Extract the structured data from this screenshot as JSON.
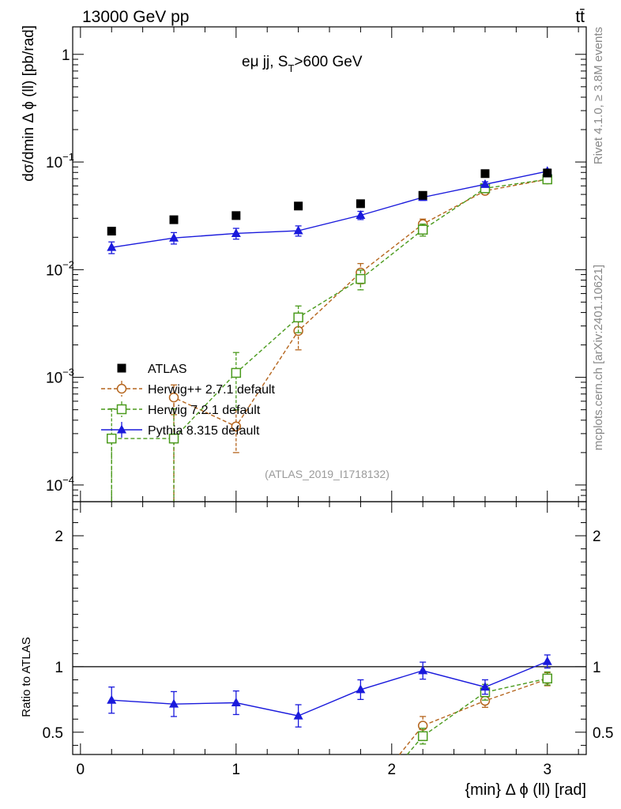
{
  "header": {
    "left_label": "13000 GeV pp",
    "right_label": "tt̄"
  },
  "side_labels": {
    "rivet": "Rivet 4.1.0, ≥ 3.8M events",
    "mcplots": "mcplots.cern.ch [arXiv:2401.10621]"
  },
  "chart_data": [
    {
      "type": "scatter",
      "panel": "main",
      "title_main": "eμ jj, S",
      "title_sub": "T",
      "title_rest": ">600 GeV",
      "ylabel": "dσ/dmin Δ ϕ (ll) [pb/rad]",
      "yscale": "log",
      "ylim": [
        7e-05,
        1.8
      ],
      "xlim": [
        -0.05,
        3.25
      ],
      "watermark": "(ATLAS_2019_I1718132)",
      "x": [
        0.2,
        0.6,
        1.0,
        1.4,
        1.8,
        2.2,
        2.6,
        3.0
      ],
      "series": [
        {
          "name": "ATLAS",
          "marker": "filled-square",
          "color": "#000000",
          "values": [
            0.0228,
            0.0291,
            0.0318,
            0.039,
            0.041,
            0.049,
            0.078,
            0.079
          ]
        },
        {
          "name": "Herwig++ 2.7.1 default",
          "marker": "open-circle",
          "color": "#b5651d",
          "values": [
            null,
            0.00065,
            0.00035,
            0.0027,
            0.0094,
            0.0265,
            0.054,
            0.069
          ],
          "err_low": [
            null,
            0.0002,
            0.00015,
            0.0009,
            0.002,
            0.003,
            0.004,
            0.005
          ],
          "err_high": [
            null,
            0.0002,
            0.00015,
            0.0009,
            0.002,
            0.003,
            0.004,
            0.005
          ]
        },
        {
          "name": "Herwig 7.2.1 default",
          "marker": "open-square",
          "color": "#4a9a1c",
          "values": [
            0.00027,
            0.00027,
            0.0011,
            0.0036,
            0.0082,
            0.0235,
            0.057,
            0.069
          ],
          "err_low": [
            0.00024,
            0.00024,
            0.0006,
            0.001,
            0.0017,
            0.003,
            0.004,
            0.005
          ],
          "err_high": [
            0.00024,
            0.00024,
            0.0006,
            0.001,
            0.0017,
            0.003,
            0.004,
            0.005
          ]
        },
        {
          "name": "Pythia 8.315 default",
          "marker": "filled-triangle",
          "color": "#1a1adc",
          "values": [
            0.0161,
            0.0197,
            0.0217,
            0.023,
            0.032,
            0.047,
            0.062,
            0.082
          ],
          "err_low": [
            0.002,
            0.0024,
            0.0025,
            0.0025,
            0.0028,
            0.003,
            0.0035,
            0.004
          ],
          "err_high": [
            0.002,
            0.0024,
            0.0025,
            0.0025,
            0.0028,
            0.003,
            0.0035,
            0.004
          ]
        }
      ],
      "y_ticks": [
        {
          "value": 0.0001,
          "base": "10",
          "exp": "−4"
        },
        {
          "value": 0.001,
          "base": "10",
          "exp": "−3"
        },
        {
          "value": 0.01,
          "base": "10",
          "exp": "−2"
        },
        {
          "value": 0.1,
          "base": "10",
          "exp": "−1"
        },
        {
          "value": 1,
          "base": "1",
          "exp": ""
        }
      ]
    },
    {
      "type": "line",
      "panel": "ratio",
      "ylabel": "Ratio to ATLAS",
      "xlabel": "{min} Δ ϕ (ll) [rad]",
      "yscale": "linear",
      "ylim": [
        0.33,
        2.26
      ],
      "xlim": [
        -0.05,
        3.25
      ],
      "reference_line": 1,
      "y_ticks": [
        0.5,
        1,
        2
      ],
      "y_tick_labels": [
        "0.5",
        "1",
        "2"
      ],
      "x_ticks": [
        0,
        1,
        2,
        3
      ],
      "x_tick_labels": [
        "0",
        "1",
        "2",
        "3"
      ],
      "x": [
        0.2,
        0.6,
        1.0,
        1.4,
        1.8,
        2.2,
        2.6,
        3.0
      ],
      "series": [
        {
          "name": "Herwig++ 2.7.1 default",
          "color": "#b5651d",
          "marker": "open-circle",
          "values": [
            null,
            null,
            null,
            null,
            null,
            0.55,
            0.74,
            0.905
          ],
          "err_low": [
            null,
            null,
            null,
            null,
            null,
            0.07,
            0.05,
            0.05
          ],
          "err_high": [
            null,
            null,
            null,
            null,
            null,
            0.07,
            0.05,
            0.05
          ],
          "from_below_x": 2.05
        },
        {
          "name": "Herwig 7.2.1 default",
          "color": "#4a9a1c",
          "marker": "open-square",
          "values": [
            null,
            null,
            null,
            null,
            null,
            0.47,
            0.805,
            0.91
          ],
          "err_low": [
            null,
            null,
            null,
            null,
            null,
            0.06,
            0.06,
            0.05
          ],
          "err_high": [
            null,
            null,
            null,
            null,
            null,
            0.06,
            0.06,
            0.05
          ],
          "from_below_x": 2.1
        },
        {
          "name": "Pythia 8.315 default",
          "color": "#1a1adc",
          "marker": "filled-triangle",
          "values": [
            0.745,
            0.715,
            0.725,
            0.625,
            0.825,
            0.97,
            0.845,
            1.04
          ],
          "err_low": [
            0.1,
            0.095,
            0.09,
            0.085,
            0.075,
            0.065,
            0.055,
            0.05
          ],
          "err_high": [
            0.1,
            0.095,
            0.09,
            0.085,
            0.075,
            0.065,
            0.055,
            0.05
          ]
        }
      ]
    }
  ]
}
